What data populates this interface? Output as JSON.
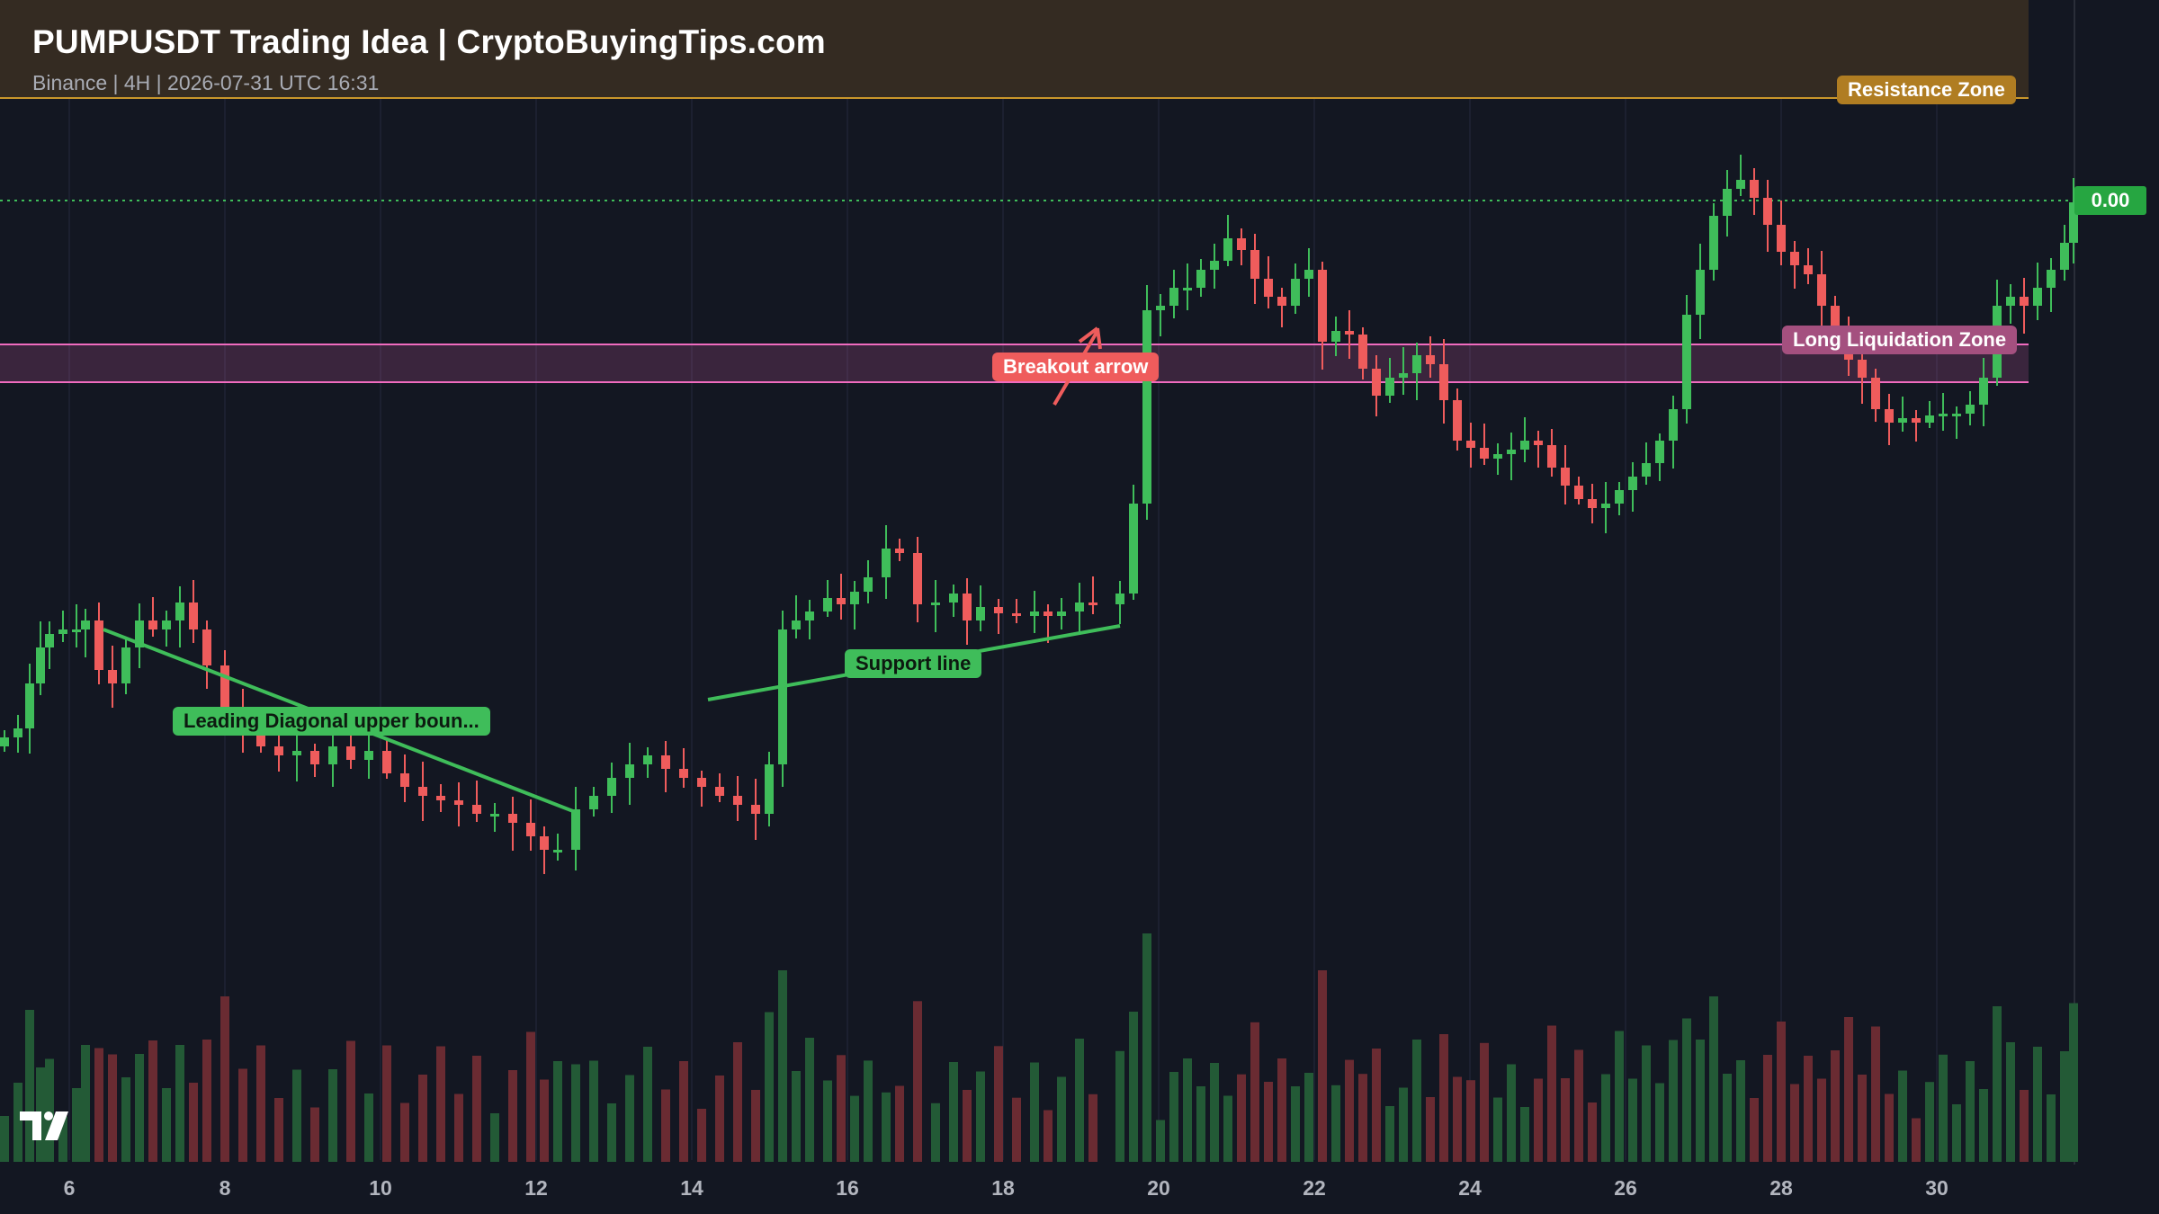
{
  "header": {
    "title": "PUMPUSDT Trading Idea | CryptoBuyingTips.com",
    "subtitle": "Binance | 4H | 2026-07-31 UTC 16:31"
  },
  "annotations": {
    "resistance_zone": "Resistance Zone",
    "long_liquidation_zone": "Long Liquidation Zone",
    "breakout_arrow": "Breakout arrow",
    "support_line": "Support line",
    "leading_diagonal": "Leading Diagonal upper boun..."
  },
  "price_scale": {
    "last_price": "0.00"
  },
  "x_axis": {
    "ticks": [
      "6",
      "8",
      "10",
      "12",
      "14",
      "16",
      "18",
      "20",
      "22",
      "24",
      "26",
      "28",
      "30"
    ]
  },
  "logo": {
    "icon": "tradingview-logo-icon"
  },
  "colors": {
    "up": "#3fbd5a",
    "down": "#ef5c5c",
    "up_volume": "#235a36",
    "down_volume": "#6a2b32",
    "resistance": "#c9962b",
    "liquidation_zone": "#f06bbf",
    "background": "#131722"
  },
  "chart_data": {
    "type": "candlestick",
    "symbol": "PUMPUSDT",
    "exchange": "Binance",
    "interval": "4H",
    "x_axis_labels": [
      "6",
      "8",
      "10",
      "12",
      "14",
      "16",
      "18",
      "20",
      "22",
      "24",
      "26",
      "28",
      "30"
    ],
    "price_scale_visible": "0.00",
    "zones": [
      "Resistance Zone",
      "Long Liquidation Zone"
    ],
    "lines": [
      "Leading Diagonal upper boun...",
      "Support line",
      "Breakout arrow"
    ],
    "grid": true
  }
}
